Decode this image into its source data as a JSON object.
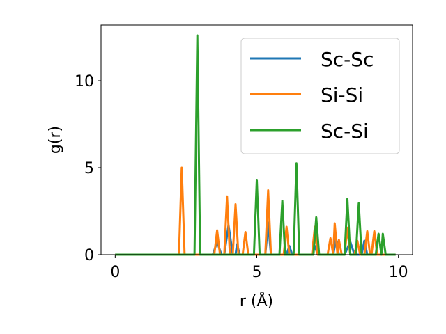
{
  "chart_data": {
    "type": "line",
    "title": "",
    "xlabel": "r (Å)",
    "ylabel": "g(r)",
    "xlim": [
      -0.5,
      10.5
    ],
    "ylim": [
      0,
      13.2
    ],
    "xticks": [
      0,
      5,
      10
    ],
    "yticks": [
      0,
      5,
      10
    ],
    "grid": false,
    "legend_position": "top-right",
    "series": [
      {
        "name": "Sc-Sc",
        "color": "#1f77b4",
        "points": [
          [
            0,
            0
          ],
          [
            3.45,
            0
          ],
          [
            3.6,
            0.75
          ],
          [
            3.75,
            0
          ],
          [
            3.85,
            0
          ],
          [
            4.0,
            1.7
          ],
          [
            4.15,
            0
          ],
          [
            4.25,
            0
          ],
          [
            4.3,
            0.6
          ],
          [
            4.4,
            0
          ],
          [
            5.3,
            0
          ],
          [
            5.4,
            1.85
          ],
          [
            5.5,
            0
          ],
          [
            6.05,
            0
          ],
          [
            6.15,
            0.5
          ],
          [
            6.25,
            0
          ],
          [
            6.95,
            0
          ],
          [
            7.05,
            0.5
          ],
          [
            7.15,
            0
          ],
          [
            7.7,
            0
          ],
          [
            7.8,
            0.9
          ],
          [
            7.9,
            0
          ],
          [
            8.1,
            0
          ],
          [
            8.3,
            0.75
          ],
          [
            8.45,
            0
          ],
          [
            8.7,
            0
          ],
          [
            8.8,
            0.8
          ],
          [
            8.9,
            0
          ],
          [
            9.75,
            0
          ],
          [
            9.9,
            0
          ]
        ]
      },
      {
        "name": "Si-Si",
        "color": "#ff7f0e",
        "points": [
          [
            0,
            0
          ],
          [
            2.25,
            0
          ],
          [
            2.35,
            5.0
          ],
          [
            2.45,
            0
          ],
          [
            3.5,
            0
          ],
          [
            3.6,
            1.4
          ],
          [
            3.7,
            0
          ],
          [
            3.85,
            0
          ],
          [
            3.95,
            3.35
          ],
          [
            4.05,
            0
          ],
          [
            4.15,
            0
          ],
          [
            4.25,
            2.9
          ],
          [
            4.35,
            0
          ],
          [
            4.5,
            0
          ],
          [
            4.6,
            1.3
          ],
          [
            4.7,
            0
          ],
          [
            5.3,
            0
          ],
          [
            5.4,
            3.7
          ],
          [
            5.5,
            0
          ],
          [
            5.95,
            0
          ],
          [
            6.05,
            1.6
          ],
          [
            6.15,
            0
          ],
          [
            6.95,
            0
          ],
          [
            7.05,
            1.6
          ],
          [
            7.15,
            0
          ],
          [
            7.5,
            0
          ],
          [
            7.6,
            0.95
          ],
          [
            7.7,
            0
          ],
          [
            7.75,
            1.8
          ],
          [
            7.85,
            0
          ],
          [
            7.9,
            0.85
          ],
          [
            8.0,
            0
          ],
          [
            8.1,
            0
          ],
          [
            8.2,
            1.55
          ],
          [
            8.3,
            0
          ],
          [
            8.45,
            0
          ],
          [
            8.55,
            0.8
          ],
          [
            8.65,
            0
          ],
          [
            8.8,
            0
          ],
          [
            8.9,
            1.35
          ],
          [
            9.0,
            0
          ],
          [
            9.05,
            0
          ],
          [
            9.15,
            1.35
          ],
          [
            9.25,
            0
          ],
          [
            9.75,
            0
          ],
          [
            9.9,
            0
          ]
        ]
      },
      {
        "name": "Sc-Si",
        "color": "#2ca02c",
        "points": [
          [
            0,
            0
          ],
          [
            2.8,
            0
          ],
          [
            2.9,
            12.6
          ],
          [
            3.0,
            0
          ],
          [
            4.9,
            0
          ],
          [
            5.0,
            4.3
          ],
          [
            5.1,
            0
          ],
          [
            5.8,
            0
          ],
          [
            5.9,
            3.1
          ],
          [
            6.0,
            0
          ],
          [
            6.3,
            0
          ],
          [
            6.4,
            5.25
          ],
          [
            6.5,
            0
          ],
          [
            7.0,
            0
          ],
          [
            7.1,
            2.15
          ],
          [
            7.2,
            0
          ],
          [
            8.1,
            0
          ],
          [
            8.2,
            3.2
          ],
          [
            8.3,
            0
          ],
          [
            8.5,
            0
          ],
          [
            8.6,
            2.95
          ],
          [
            8.7,
            0
          ],
          [
            9.2,
            0
          ],
          [
            9.3,
            1.2
          ],
          [
            9.4,
            0
          ],
          [
            9.45,
            1.2
          ],
          [
            9.55,
            0
          ],
          [
            9.75,
            0
          ],
          [
            9.9,
            0
          ]
        ]
      }
    ]
  }
}
